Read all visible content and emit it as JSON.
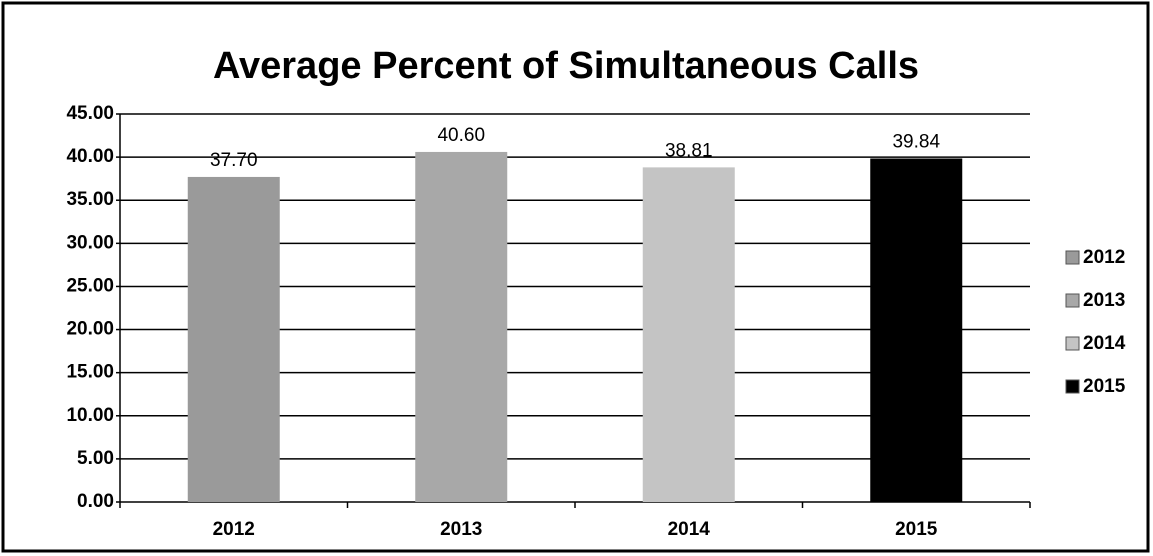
{
  "chart_data": {
    "type": "bar",
    "title": "Average Percent of Simultaneous Calls",
    "categories": [
      "2012",
      "2013",
      "2014",
      "2015"
    ],
    "values": [
      37.7,
      40.6,
      38.81,
      39.84
    ],
    "value_labels": [
      "37.70",
      "40.60",
      "38.81",
      "39.84"
    ],
    "colors": [
      "#9a9a9a",
      "#a8a8a8",
      "#c4c4c4",
      "#000000"
    ],
    "ylim": [
      0,
      45
    ],
    "yticks": [
      {
        "value": 0,
        "label": "0.00"
      },
      {
        "value": 5,
        "label": "5.00"
      },
      {
        "value": 10,
        "label": "10.00"
      },
      {
        "value": 15,
        "label": "15.00"
      },
      {
        "value": 20,
        "label": "20.00"
      },
      {
        "value": 25,
        "label": "25.00"
      },
      {
        "value": 30,
        "label": "30.00"
      },
      {
        "value": 35,
        "label": "35.00"
      },
      {
        "value": 40,
        "label": "40.00"
      },
      {
        "value": 45,
        "label": "45.00"
      }
    ],
    "grid": true,
    "legend": "right"
  }
}
